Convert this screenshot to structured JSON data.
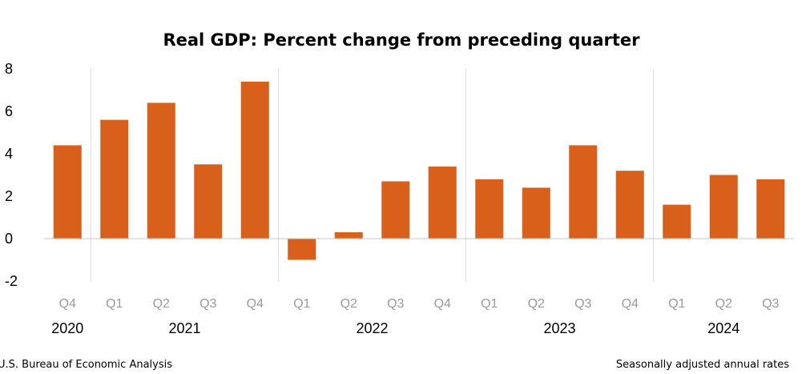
{
  "chart_data": {
    "type": "bar",
    "title": "Real GDP:  Percent change from preceding quarter",
    "xlabel": "",
    "ylabel": "",
    "ylim": [
      -2,
      8
    ],
    "yticks": [
      "8",
      "6",
      "4",
      "2",
      "0",
      "-2"
    ],
    "grid": false,
    "bar_color": "#d9601a",
    "categories": [
      "Q4",
      "Q1",
      "Q2",
      "Q3",
      "Q4",
      "Q1",
      "Q2",
      "Q3",
      "Q4",
      "Q1",
      "Q2",
      "Q3",
      "Q4",
      "Q1",
      "Q2",
      "Q3"
    ],
    "year_groups": [
      {
        "label": "2020",
        "count": 1
      },
      {
        "label": "2021",
        "count": 4
      },
      {
        "label": "2022",
        "count": 4
      },
      {
        "label": "2023",
        "count": 4
      },
      {
        "label": "2024",
        "count": 3
      }
    ],
    "values": [
      4.4,
      5.6,
      6.4,
      3.5,
      7.4,
      -1.0,
      0.3,
      2.7,
      3.4,
      2.8,
      2.4,
      4.4,
      3.2,
      1.6,
      3.0,
      2.8
    ]
  },
  "footer": {
    "source": "U.S. Bureau of Economic Analysis",
    "note": "Seasonally adjusted annual rates"
  }
}
